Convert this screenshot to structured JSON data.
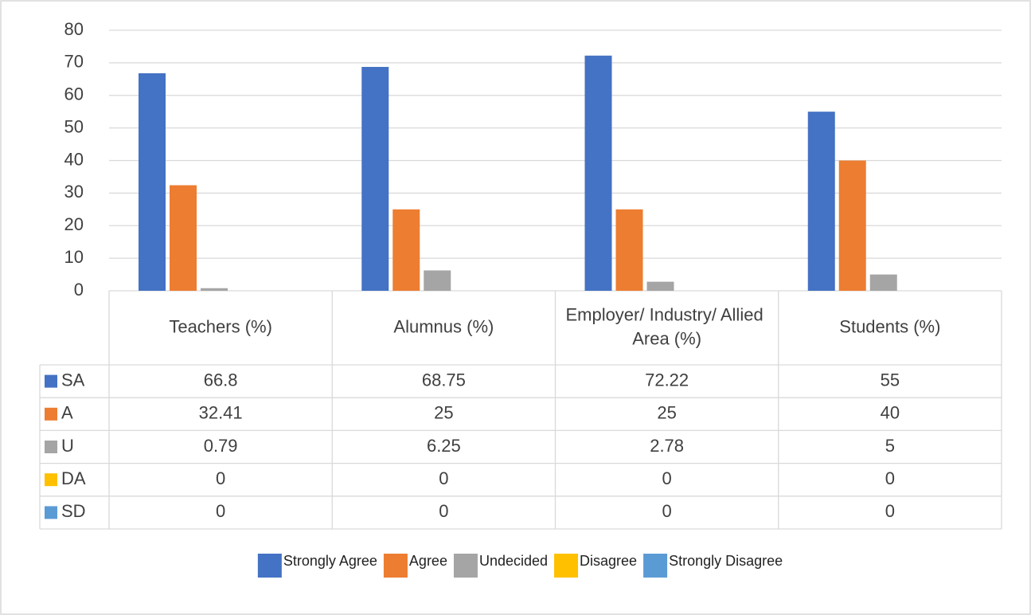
{
  "chart_data": {
    "type": "bar",
    "categories": [
      "Teachers (%)",
      "Alumnus (%)",
      "Employer/ Industry/ Allied Area (%)",
      "Students (%)"
    ],
    "series": [
      {
        "name": "Strongly Agree",
        "table_label": "SA",
        "color": "#4472c4",
        "values": [
          66.8,
          68.75,
          72.22,
          55
        ]
      },
      {
        "name": "Agree",
        "table_label": "A",
        "color": "#ed7d31",
        "values": [
          32.41,
          25,
          25,
          40
        ]
      },
      {
        "name": "Undecided",
        "table_label": "U",
        "color": "#a5a5a5",
        "values": [
          0.79,
          6.25,
          2.78,
          5
        ]
      },
      {
        "name": "Disagree",
        "table_label": "DA",
        "color": "#ffc000",
        "values": [
          0,
          0,
          0,
          0
        ]
      },
      {
        "name": "Strongly Disagree",
        "table_label": "SD",
        "color": "#5b9bd5",
        "values": [
          0,
          0,
          0,
          0
        ]
      }
    ],
    "ylim": [
      0,
      80
    ],
    "yticks": [
      0,
      10,
      20,
      30,
      40,
      50,
      60,
      70,
      80
    ],
    "grid": true,
    "legend": "bottom"
  }
}
